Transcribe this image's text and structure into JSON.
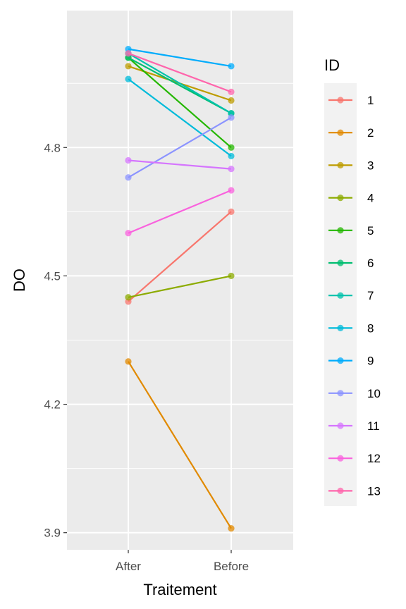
{
  "chart_data": {
    "type": "line",
    "title": "",
    "xlabel": "Traitement",
    "ylabel": "DO",
    "categories": [
      "After",
      "Before"
    ],
    "ylim": [
      3.86,
      5.12
    ],
    "yticks": [
      "3.9",
      "4.2",
      "4.5",
      "4.8"
    ],
    "grid": true,
    "legend_title": "ID",
    "legend_position": "right",
    "series": [
      {
        "name": "1",
        "color": "#F8766D",
        "values": [
          4.44,
          4.65
        ]
      },
      {
        "name": "2",
        "color": "#E18A00",
        "values": [
          4.3,
          3.91
        ]
      },
      {
        "name": "3",
        "color": "#BE9C00",
        "values": [
          4.99,
          4.91
        ]
      },
      {
        "name": "4",
        "color": "#8CAB00",
        "values": [
          4.45,
          4.5
        ]
      },
      {
        "name": "5",
        "color": "#24B700",
        "values": [
          5.01,
          4.8
        ]
      },
      {
        "name": "6",
        "color": "#00BE70",
        "values": [
          5.01,
          4.88
        ]
      },
      {
        "name": "7",
        "color": "#00C1AB",
        "values": [
          5.02,
          4.88
        ]
      },
      {
        "name": "8",
        "color": "#00BBDA",
        "values": [
          4.96,
          4.78
        ]
      },
      {
        "name": "9",
        "color": "#00ACFC",
        "values": [
          5.03,
          4.99
        ]
      },
      {
        "name": "10",
        "color": "#8B93FF",
        "values": [
          4.73,
          4.87
        ]
      },
      {
        "name": "11",
        "color": "#D575FE",
        "values": [
          4.77,
          4.75
        ]
      },
      {
        "name": "12",
        "color": "#F962DD",
        "values": [
          4.6,
          4.7
        ]
      },
      {
        "name": "13",
        "color": "#FF65AC",
        "values": [
          5.02,
          4.93
        ]
      }
    ]
  }
}
